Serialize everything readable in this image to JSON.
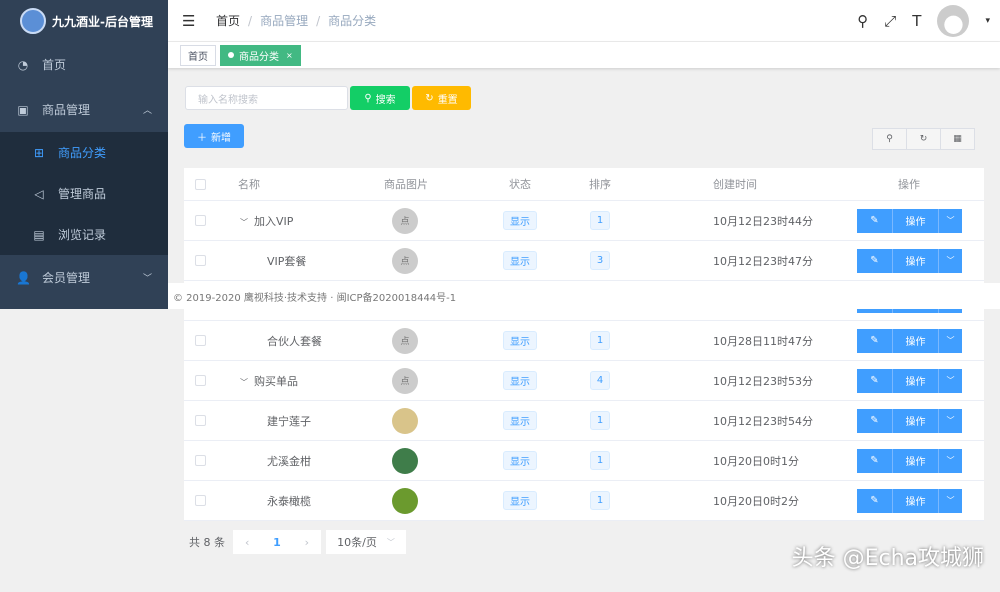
{
  "app": {
    "title": "九九酒业-后台管理"
  },
  "sidebar": {
    "items": [
      {
        "label": "首页",
        "icon": "dashboard-icon"
      },
      {
        "label": "商品管理",
        "icon": "shop-icon",
        "expanded": true,
        "children": [
          {
            "label": "商品分类",
            "icon": "category-icon",
            "active": true
          },
          {
            "label": "管理商品",
            "icon": "send-icon"
          },
          {
            "label": "浏览记录",
            "icon": "record-icon"
          }
        ]
      },
      {
        "label": "会员管理",
        "icon": "user-icon"
      }
    ]
  },
  "breadcrumb": [
    "首页",
    "商品管理",
    "商品分类"
  ],
  "tags": [
    {
      "label": "首页"
    },
    {
      "label": "商品分类",
      "close": "×"
    }
  ],
  "search": {
    "placeholder": "输入名称搜索",
    "search_label": "搜索",
    "reset_label": "重置",
    "add_label": "新增"
  },
  "colors": {
    "primary": "#409eff",
    "success": "#13ce66",
    "warning": "#ffba00",
    "sidebar": "#304156",
    "tag": "#42b983"
  },
  "table": {
    "headers": [
      "名称",
      "商品图片",
      "状态",
      "排序",
      "创建时间",
      "操作"
    ],
    "rows": [
      {
        "name": "加入VIP",
        "expand": true,
        "img": "点",
        "status": "显示",
        "sort": "1",
        "time": "10月12日23时44分"
      },
      {
        "name": "VIP套餐",
        "img": "点",
        "status": "显示",
        "sort": "3",
        "time": "10月12日23时47分"
      },
      {
        "name": "",
        "img": "",
        "status": "",
        "sort": "",
        "time": "",
        "hidden": true
      },
      {
        "name": "合伙人套餐",
        "img": "点",
        "status": "显示",
        "sort": "1",
        "time": "10月28日11时47分"
      },
      {
        "name": "购买单品",
        "expand": true,
        "img": "点",
        "status": "显示",
        "sort": "4",
        "time": "10月12日23时53分"
      },
      {
        "name": "建宁莲子",
        "img": "photo",
        "status": "显示",
        "sort": "1",
        "time": "10月12日23时54分"
      },
      {
        "name": "尤溪金柑",
        "img": "photo",
        "status": "显示",
        "sort": "1",
        "time": "10月20日0时1分"
      },
      {
        "name": "永泰橄榄",
        "img": "photo",
        "status": "显示",
        "sort": "1",
        "time": "10月20日0时2分"
      }
    ],
    "op_label": "操作"
  },
  "footer": "© 2019-2020 鹰视科技·技术支持 · 闽ICP备2020018444号-1",
  "pagination": {
    "total": "共 8 条",
    "current": "1",
    "page_size": "10条/页"
  },
  "watermark": "头条 @Echa攻城狮"
}
